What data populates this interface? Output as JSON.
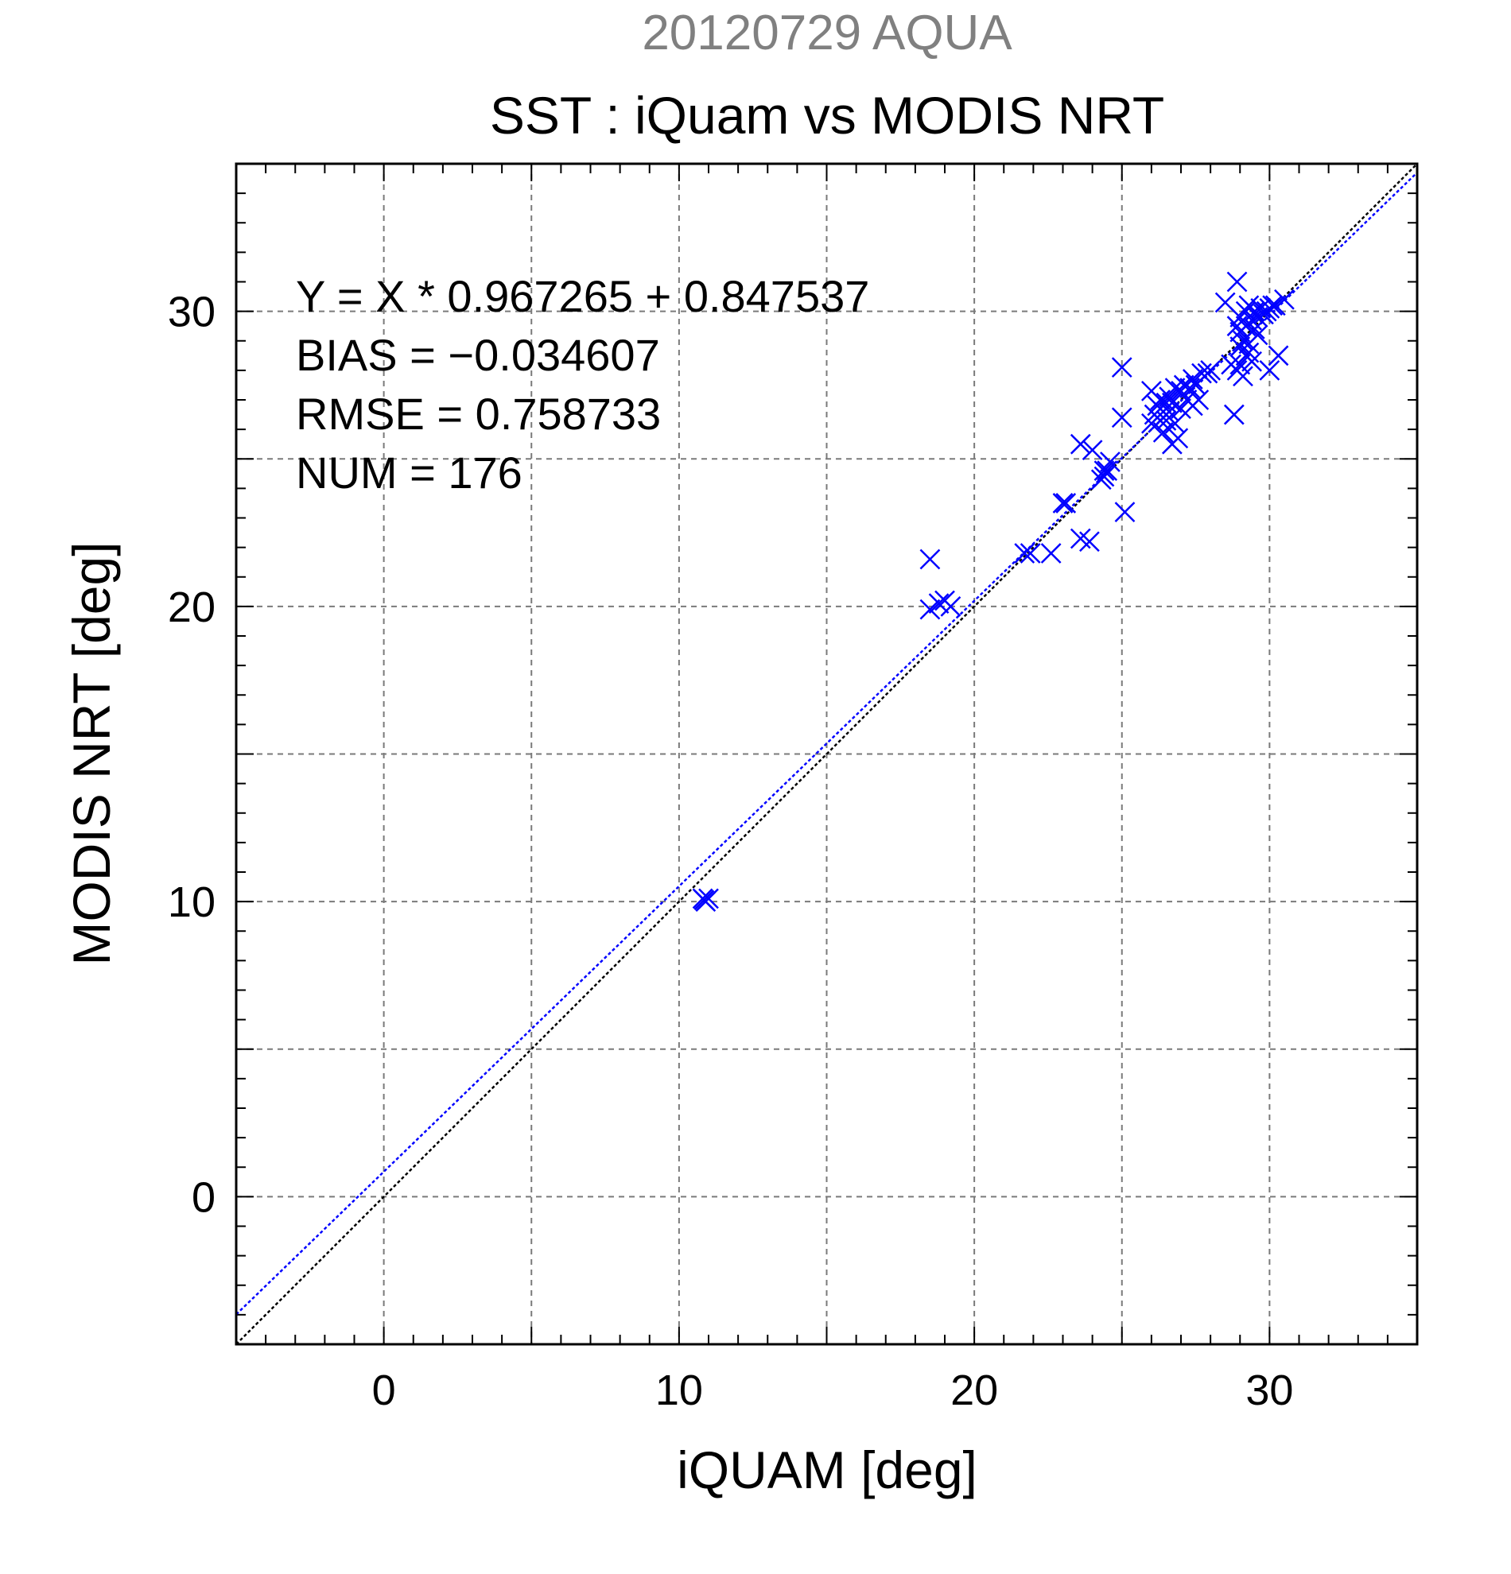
{
  "chart_data": {
    "type": "scatter",
    "supertitle": "20120729 AQUA",
    "title": "SST : iQuam vs MODIS NRT",
    "xlabel": "iQUAM [deg]",
    "ylabel": "MODIS NRT [deg]",
    "xlim": [
      -5,
      35
    ],
    "ylim": [
      -5,
      35
    ],
    "x_ticks": [
      0,
      10,
      20,
      30
    ],
    "y_ticks": [
      0,
      10,
      20,
      30
    ],
    "grid": true,
    "colors": {
      "points": "#0000ff",
      "fit_line": "#0000ff",
      "identity_line": "#000000",
      "supertitle": "#808080"
    },
    "stats": [
      "Y = X * 0.967265 + 0.847537",
      "BIAS = −0.034607",
      "RMSE = 0.758733",
      "NUM = 176"
    ],
    "fit": {
      "slope": 0.967265,
      "intercept": 0.847537
    },
    "series": [
      {
        "marker": "x",
        "points": [
          [
            10.8,
            10.1
          ],
          [
            10.9,
            10.0
          ],
          [
            11.0,
            10.1
          ],
          [
            10.85,
            10.05
          ],
          [
            18.5,
            21.6
          ],
          [
            18.5,
            19.9
          ],
          [
            18.8,
            20.1
          ],
          [
            19.0,
            20.2
          ],
          [
            19.2,
            20.0
          ],
          [
            21.7,
            21.8
          ],
          [
            21.9,
            21.8
          ],
          [
            22.6,
            21.8
          ],
          [
            23.0,
            23.5
          ],
          [
            23.1,
            23.5
          ],
          [
            23.6,
            25.5
          ],
          [
            23.6,
            22.3
          ],
          [
            23.9,
            22.2
          ],
          [
            24.0,
            25.3
          ],
          [
            24.3,
            24.3
          ],
          [
            24.4,
            24.6
          ],
          [
            24.5,
            24.6
          ],
          [
            24.6,
            24.9
          ],
          [
            24.4,
            24.4
          ],
          [
            25.0,
            28.1
          ],
          [
            25.0,
            26.4
          ],
          [
            25.1,
            23.2
          ],
          [
            26.0,
            27.3
          ],
          [
            26.0,
            26.2
          ],
          [
            26.1,
            26.5
          ],
          [
            26.2,
            26.8
          ],
          [
            26.3,
            26.3
          ],
          [
            26.3,
            27.0
          ],
          [
            26.4,
            26.6
          ],
          [
            26.4,
            25.9
          ],
          [
            26.5,
            26.9
          ],
          [
            26.5,
            26.3
          ],
          [
            26.6,
            27.1
          ],
          [
            26.6,
            26.6
          ],
          [
            26.7,
            25.5
          ],
          [
            26.7,
            26.9
          ],
          [
            26.8,
            27.4
          ],
          [
            26.8,
            26.2
          ],
          [
            26.9,
            25.7
          ],
          [
            27.0,
            27.3
          ],
          [
            27.0,
            26.7
          ],
          [
            27.1,
            27.5
          ],
          [
            27.2,
            27.0
          ],
          [
            27.3,
            27.4
          ],
          [
            27.4,
            27.7
          ],
          [
            27.4,
            26.8
          ],
          [
            27.5,
            27.5
          ],
          [
            27.6,
            27.0
          ],
          [
            27.7,
            27.9
          ],
          [
            27.9,
            27.9
          ],
          [
            28.0,
            28.0
          ],
          [
            28.5,
            30.3
          ],
          [
            28.7,
            28.2
          ],
          [
            28.8,
            26.5
          ],
          [
            28.9,
            28.0
          ],
          [
            28.9,
            29.5
          ],
          [
            28.9,
            31.0
          ],
          [
            29.0,
            28.8
          ],
          [
            29.0,
            29.3
          ],
          [
            29.0,
            29.8
          ],
          [
            29.0,
            28.2
          ],
          [
            29.1,
            29.0
          ],
          [
            29.1,
            27.8
          ],
          [
            29.2,
            29.5
          ],
          [
            29.2,
            28.5
          ],
          [
            29.2,
            30.0
          ],
          [
            29.3,
            30.2
          ],
          [
            29.3,
            28.9
          ],
          [
            29.4,
            29.7
          ],
          [
            29.4,
            28.3
          ],
          [
            29.5,
            29.4
          ],
          [
            29.5,
            30.0
          ],
          [
            29.6,
            29.8
          ],
          [
            29.7,
            30.1
          ],
          [
            29.8,
            29.9
          ],
          [
            29.9,
            30.0
          ],
          [
            30.0,
            28.0
          ],
          [
            30.0,
            30.1
          ],
          [
            30.1,
            30.2
          ],
          [
            30.3,
            28.5
          ],
          [
            30.5,
            30.4
          ],
          [
            30.2,
            30.2
          ],
          [
            29.6,
            29.2
          ],
          [
            29.3,
            28.6
          ]
        ]
      }
    ]
  }
}
